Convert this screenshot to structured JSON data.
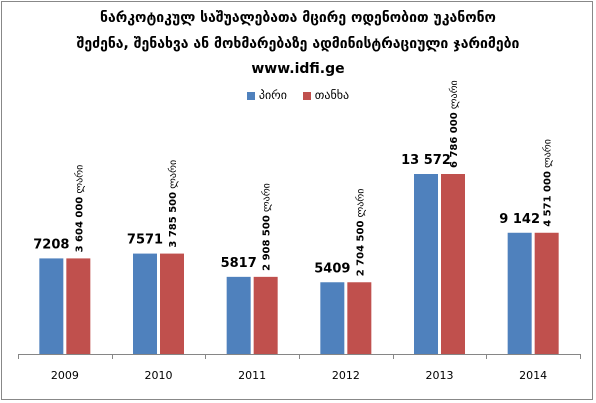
{
  "chart_data": {
    "type": "bar",
    "title_lines": [
      "ნარკოტიკულ საშუალებათა მცირე ოდენობით უკანონო",
      "შეძენა, შენახვა ან მოხმარებაზე ადმინისტრაციული ჯარიმები",
      "www.idfi.ge"
    ],
    "categories": [
      "2009",
      "2010",
      "2011",
      "2012",
      "2013",
      "2014"
    ],
    "series": [
      {
        "name": "პირი",
        "color": "#4f81bd",
        "values": [
          7208,
          7571,
          5817,
          5409,
          13572,
          9142
        ],
        "labels": [
          "7208",
          "7571",
          "5817",
          "5409",
          "13 572",
          "9 142"
        ]
      },
      {
        "name": "თანხა",
        "color": "#c0504d",
        "values": [
          3604000,
          3785500,
          2908500,
          2704500,
          6786000,
          4571000
        ],
        "label_numbers": [
          "3 604 000",
          "3 785 500",
          "2 908 500",
          "2 704 500",
          "6 786 000",
          "4 571 000"
        ],
        "label_unit": "ლარი"
      }
    ],
    "legend_position": "top-center",
    "grid": false
  }
}
